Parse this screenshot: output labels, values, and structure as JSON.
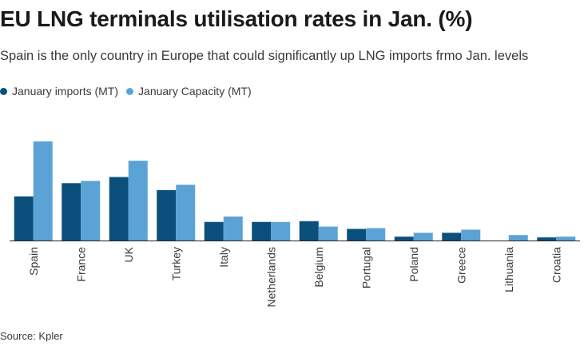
{
  "title": "EU LNG terminals utilisation rates in Jan. (%)",
  "subtitle": "Spain is the only country in Europe that could significantly up LNG imports frmo Jan. levels",
  "source": "Source: Kpler",
  "colors": {
    "imports": "#0b4f7c",
    "capacity": "#5ba3d6",
    "axis": "#222222"
  },
  "chart_data": {
    "type": "bar",
    "title": "EU LNG terminals utilisation rates in Jan. (%)",
    "xlabel": "",
    "ylabel": "",
    "grid": false,
    "legend": "top-left",
    "ylim": [
      0,
      130
    ],
    "categories": [
      "Spain",
      "France",
      "UK",
      "Turkey",
      "Italy",
      "Netherlands",
      "Belgium",
      "Portugal",
      "Poland",
      "Greece",
      "Lithuania",
      "Croatia"
    ],
    "series": [
      {
        "name": "January imports (MT)",
        "color": "#0b4f7c",
        "values": [
          57,
          74,
          82,
          65,
          24,
          24,
          25,
          15,
          5,
          10,
          0,
          4
        ]
      },
      {
        "name": "January Capacity (MT)",
        "color": "#5ba3d6",
        "values": [
          128,
          77,
          103,
          72,
          31,
          24,
          18,
          16,
          10,
          14,
          7,
          5
        ]
      }
    ]
  }
}
